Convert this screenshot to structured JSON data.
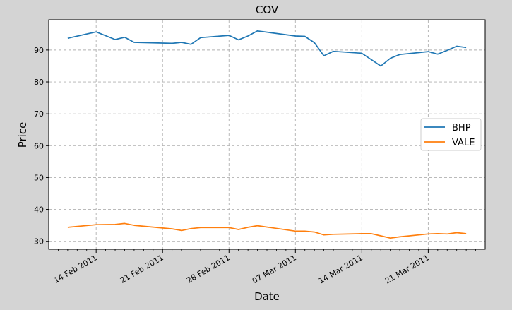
{
  "chart_data": {
    "type": "line",
    "title": "COV",
    "xlabel": "Date",
    "ylabel": "Price",
    "ylim": [
      27.5,
      99.5
    ],
    "xlim": [
      "2011-02-09",
      "2011-03-27"
    ],
    "yticks": [
      30,
      40,
      50,
      60,
      70,
      80,
      90
    ],
    "xticks": [
      {
        "date": "2011-02-14",
        "label": "14 Feb 2011"
      },
      {
        "date": "2011-02-21",
        "label": "21 Feb 2011"
      },
      {
        "date": "2011-02-28",
        "label": "28 Feb 2011"
      },
      {
        "date": "2011-03-07",
        "label": "07 Mar 2011"
      },
      {
        "date": "2011-03-14",
        "label": "14 Mar 2011"
      },
      {
        "date": "2011-03-21",
        "label": "21 Mar 2011"
      }
    ],
    "minor_xticks": [
      "2011-02-10",
      "2011-02-11",
      "2011-02-12",
      "2011-02-13",
      "2011-02-15",
      "2011-02-16",
      "2011-02-17",
      "2011-02-18",
      "2011-02-19",
      "2011-02-20",
      "2011-02-22",
      "2011-02-23",
      "2011-02-24",
      "2011-02-25",
      "2011-02-26",
      "2011-02-27",
      "2011-03-01",
      "2011-03-02",
      "2011-03-03",
      "2011-03-04",
      "2011-03-05",
      "2011-03-06",
      "2011-03-08",
      "2011-03-09",
      "2011-03-10",
      "2011-03-11",
      "2011-03-12",
      "2011-03-13",
      "2011-03-15",
      "2011-03-16",
      "2011-03-17",
      "2011-03-18",
      "2011-03-19",
      "2011-03-20",
      "2011-03-22",
      "2011-03-23",
      "2011-03-24",
      "2011-03-25",
      "2011-03-26"
    ],
    "grid": true,
    "legend_position": "right",
    "x": [
      "2011-02-11",
      "2011-02-14",
      "2011-02-16",
      "2011-02-17",
      "2011-02-18",
      "2011-02-22",
      "2011-02-23",
      "2011-02-24",
      "2011-02-25",
      "2011-02-28",
      "2011-03-01",
      "2011-03-02",
      "2011-03-03",
      "2011-03-07",
      "2011-03-08",
      "2011-03-09",
      "2011-03-10",
      "2011-03-11",
      "2011-03-14",
      "2011-03-15",
      "2011-03-16",
      "2011-03-17",
      "2011-03-18",
      "2011-03-21",
      "2011-03-22",
      "2011-03-23",
      "2011-03-24",
      "2011-03-25"
    ],
    "series": [
      {
        "name": "BHP",
        "color": "#1f77b4",
        "values": [
          93.7,
          95.7,
          93.3,
          94.0,
          92.4,
          92.1,
          92.4,
          91.8,
          93.9,
          94.6,
          93.2,
          94.4,
          96.0,
          94.4,
          94.3,
          92.3,
          88.2,
          89.6,
          89.0,
          87.0,
          85.0,
          87.4,
          88.6,
          89.5,
          88.7,
          89.9,
          91.2,
          90.8
        ]
      },
      {
        "name": "VALE",
        "color": "#ff7f0e",
        "values": [
          34.4,
          35.2,
          35.3,
          35.6,
          35.0,
          33.9,
          33.4,
          34.0,
          34.3,
          34.3,
          33.7,
          34.4,
          34.9,
          33.2,
          33.2,
          32.9,
          32.0,
          32.2,
          32.4,
          32.4,
          31.7,
          31.0,
          31.4,
          32.3,
          32.4,
          32.3,
          32.7,
          32.4
        ]
      }
    ]
  }
}
